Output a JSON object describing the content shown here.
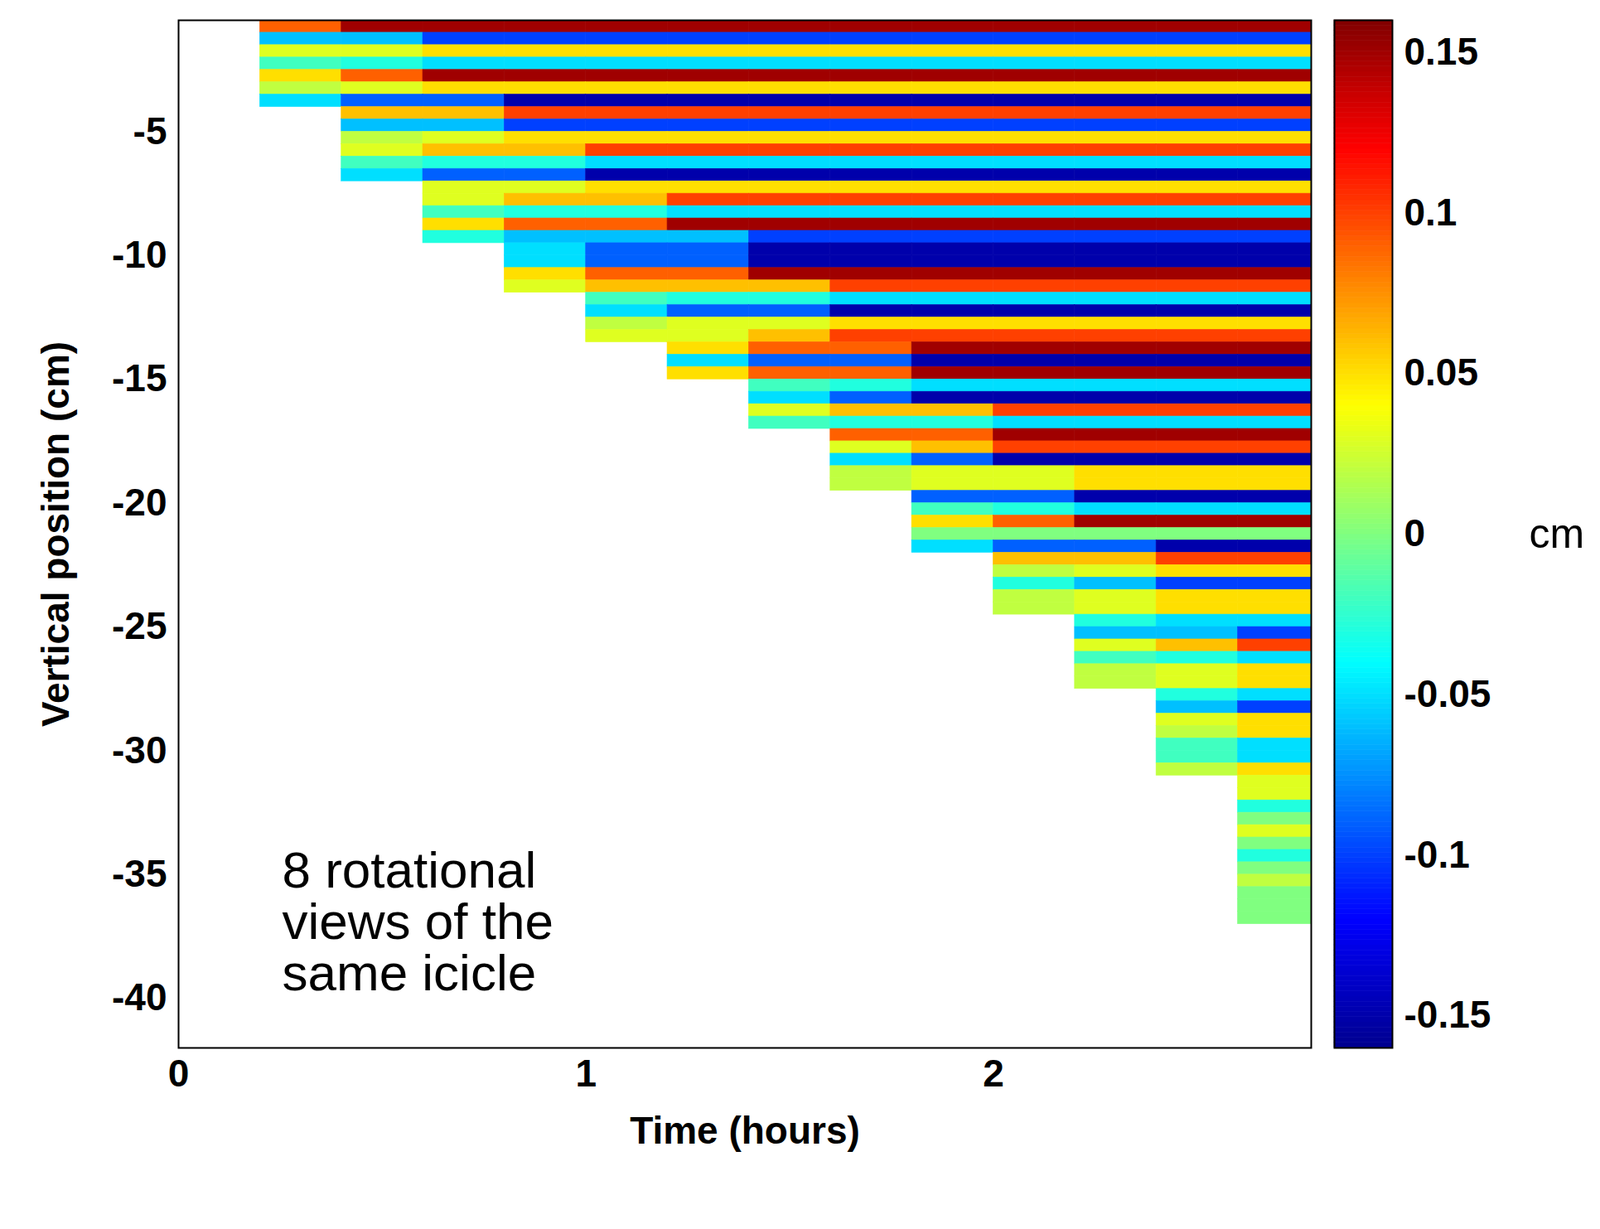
{
  "chart_data": {
    "type": "heatmap",
    "xlabel": "Time (hours)",
    "ylabel": "Vertical position (cm)",
    "annotation": "8 rotational views of the same icicle",
    "xlim": [
      0,
      2.78
    ],
    "ylim": [
      -42,
      -0.5
    ],
    "xticks": [
      0,
      1,
      2
    ],
    "yticks": [
      -40,
      -35,
      -30,
      -25,
      -20,
      -15,
      -10,
      -5
    ],
    "time_edges": [
      0.2,
      0.4,
      0.6,
      0.8,
      1,
      1.2,
      1.4,
      1.6,
      1.8,
      2,
      2.2,
      2.4,
      2.6,
      2.78
    ],
    "position_edges": [
      -0.5,
      -1,
      -1.5,
      -2,
      -2.5,
      -3,
      -3.5,
      -4,
      -4.5,
      -5,
      -5.5,
      -6,
      -6.5,
      -7,
      -7.5,
      -8,
      -8.5,
      -9,
      -9.5,
      -10,
      -10.5,
      -11,
      -11.5,
      -12,
      -12.5,
      -13,
      -13.5,
      -14,
      -14.5,
      -15,
      -15.5,
      -16,
      -16.5,
      -17,
      -17.5,
      -18,
      -18.5,
      -19,
      -19.5,
      -20,
      -20.5,
      -21,
      -21.5,
      -22,
      -22.5,
      -23,
      -23.5,
      -24,
      -24.5,
      -25,
      -25.5,
      -26,
      -26.5,
      -27,
      -27.5,
      -28,
      -28.5,
      -29,
      -29.5,
      -30,
      -30.5,
      -31,
      -31.5,
      -32,
      -32.5,
      -33,
      -33.5,
      -34,
      -34.5,
      -35,
      -35.5,
      -36,
      -36.5,
      -37
    ],
    "cells": [
      [
        0.09,
        0.15,
        0.15,
        0.15,
        0.15,
        0.15,
        0.15,
        0.15,
        0.15,
        0.15,
        0.15,
        0.15,
        0.15
      ],
      [
        -0.06,
        -0.06,
        -0.1,
        -0.1,
        -0.1,
        -0.1,
        -0.1,
        -0.1,
        -0.1,
        -0.1,
        -0.1,
        -0.1,
        -0.1
      ],
      [
        0.03,
        0.03,
        0.05,
        0.05,
        0.05,
        0.05,
        0.05,
        0.05,
        0.05,
        0.05,
        0.05,
        0.05,
        0.05
      ],
      [
        -0.02,
        -0.03,
        -0.05,
        -0.05,
        -0.05,
        -0.05,
        -0.05,
        -0.05,
        -0.05,
        -0.05,
        -0.05,
        -0.05,
        -0.05
      ],
      [
        0.05,
        0.09,
        0.15,
        0.15,
        0.15,
        0.15,
        0.15,
        0.15,
        0.15,
        0.15,
        0.15,
        0.15,
        0.15
      ],
      [
        0.02,
        0.03,
        0.05,
        0.05,
        0.05,
        0.05,
        0.05,
        0.05,
        0.05,
        0.05,
        0.05,
        0.05,
        0.05
      ],
      [
        -0.05,
        -0.09,
        -0.09,
        -0.15,
        -0.15,
        -0.15,
        -0.15,
        -0.15,
        -0.15,
        -0.15,
        -0.15,
        -0.15,
        -0.15
      ],
      [
        null,
        0.06,
        0.06,
        0.1,
        0.1,
        0.1,
        0.1,
        0.1,
        0.1,
        0.1,
        0.1,
        0.1,
        0.1
      ],
      [
        null,
        -0.06,
        -0.06,
        -0.1,
        -0.1,
        -0.1,
        -0.1,
        -0.1,
        -0.1,
        -0.1,
        -0.1,
        -0.1,
        -0.1
      ],
      [
        null,
        0.02,
        0.03,
        0.05,
        0.05,
        0.05,
        0.05,
        0.05,
        0.05,
        0.05,
        0.05,
        0.05,
        0.05
      ],
      [
        null,
        0.03,
        0.06,
        0.06,
        0.1,
        0.1,
        0.1,
        0.1,
        0.1,
        0.1,
        0.1,
        0.1,
        0.1
      ],
      [
        null,
        -0.02,
        -0.03,
        -0.03,
        -0.05,
        -0.05,
        -0.05,
        -0.05,
        -0.05,
        -0.05,
        -0.05,
        -0.05,
        -0.05
      ],
      [
        null,
        -0.05,
        -0.09,
        -0.09,
        -0.15,
        -0.15,
        -0.15,
        -0.15,
        -0.15,
        -0.15,
        -0.15,
        -0.15,
        -0.15
      ],
      [
        null,
        null,
        0.03,
        0.03,
        0.05,
        0.05,
        0.05,
        0.05,
        0.05,
        0.05,
        0.05,
        0.05,
        0.05
      ],
      [
        null,
        null,
        0.03,
        0.06,
        0.06,
        0.1,
        0.1,
        0.1,
        0.1,
        0.1,
        0.1,
        0.1,
        0.1
      ],
      [
        null,
        null,
        -0.02,
        -0.03,
        -0.03,
        -0.05,
        -0.05,
        -0.05,
        -0.05,
        -0.05,
        -0.05,
        -0.05,
        -0.05
      ],
      [
        null,
        null,
        0.05,
        0.09,
        0.09,
        0.15,
        0.15,
        0.15,
        0.15,
        0.15,
        0.15,
        0.15,
        0.15
      ],
      [
        null,
        null,
        -0.03,
        -0.06,
        -0.06,
        -0.06,
        -0.1,
        -0.1,
        -0.1,
        -0.1,
        -0.1,
        -0.1,
        -0.1
      ],
      [
        null,
        null,
        null,
        -0.05,
        -0.09,
        -0.09,
        -0.15,
        -0.15,
        -0.15,
        -0.15,
        -0.15,
        -0.15,
        -0.15
      ],
      [
        null,
        null,
        null,
        -0.05,
        -0.09,
        -0.09,
        -0.15,
        -0.15,
        -0.15,
        -0.15,
        -0.15,
        -0.15,
        -0.15
      ],
      [
        null,
        null,
        null,
        0.05,
        0.09,
        0.09,
        0.15,
        0.15,
        0.15,
        0.15,
        0.15,
        0.15,
        0.15
      ],
      [
        null,
        null,
        null,
        0.03,
        0.06,
        0.06,
        0.06,
        0.1,
        0.1,
        0.1,
        0.1,
        0.1,
        0.1
      ],
      [
        null,
        null,
        null,
        null,
        -0.02,
        -0.03,
        -0.03,
        -0.05,
        -0.05,
        -0.05,
        -0.05,
        -0.05,
        -0.05
      ],
      [
        null,
        null,
        null,
        null,
        -0.05,
        -0.09,
        -0.09,
        -0.15,
        -0.15,
        -0.15,
        -0.15,
        -0.15,
        -0.15
      ],
      [
        null,
        null,
        null,
        null,
        0.02,
        0.03,
        0.03,
        0.05,
        0.05,
        0.05,
        0.05,
        0.05,
        0.05
      ],
      [
        null,
        null,
        null,
        null,
        0.03,
        0.03,
        0.06,
        0.1,
        0.1,
        0.1,
        0.1,
        0.1,
        0.1
      ],
      [
        null,
        null,
        null,
        null,
        null,
        0.05,
        0.09,
        0.09,
        0.15,
        0.15,
        0.15,
        0.15,
        0.15
      ],
      [
        null,
        null,
        null,
        null,
        null,
        -0.05,
        -0.09,
        -0.09,
        -0.15,
        -0.15,
        -0.15,
        -0.15,
        -0.15
      ],
      [
        null,
        null,
        null,
        null,
        null,
        0.05,
        0.09,
        0.09,
        0.15,
        0.15,
        0.15,
        0.15,
        0.15
      ],
      [
        null,
        null,
        null,
        null,
        null,
        null,
        -0.02,
        -0.03,
        -0.05,
        -0.05,
        -0.05,
        -0.05,
        -0.05
      ],
      [
        null,
        null,
        null,
        null,
        null,
        null,
        -0.05,
        -0.09,
        -0.15,
        -0.15,
        -0.15,
        -0.15,
        -0.15
      ],
      [
        null,
        null,
        null,
        null,
        null,
        null,
        0.03,
        0.06,
        0.06,
        0.1,
        0.1,
        0.1,
        0.1
      ],
      [
        null,
        null,
        null,
        null,
        null,
        null,
        -0.02,
        -0.03,
        -0.03,
        -0.05,
        -0.05,
        -0.05,
        -0.05
      ],
      [
        null,
        null,
        null,
        null,
        null,
        null,
        null,
        0.09,
        0.09,
        0.15,
        0.15,
        0.15,
        0.15
      ],
      [
        null,
        null,
        null,
        null,
        null,
        null,
        null,
        0.03,
        0.06,
        0.1,
        0.1,
        0.1,
        0.1
      ],
      [
        null,
        null,
        null,
        null,
        null,
        null,
        null,
        -0.05,
        -0.09,
        -0.15,
        -0.15,
        -0.15,
        -0.15
      ],
      [
        null,
        null,
        null,
        null,
        null,
        null,
        null,
        0.02,
        0.03,
        0.03,
        0.05,
        0.05,
        0.05
      ],
      [
        null,
        null,
        null,
        null,
        null,
        null,
        null,
        0.02,
        0.03,
        0.03,
        0.05,
        0.05,
        0.05
      ],
      [
        null,
        null,
        null,
        null,
        null,
        null,
        null,
        null,
        -0.09,
        -0.09,
        -0.15,
        -0.15,
        -0.15
      ],
      [
        null,
        null,
        null,
        null,
        null,
        null,
        null,
        null,
        -0.02,
        -0.03,
        -0.05,
        -0.05,
        -0.05
      ],
      [
        null,
        null,
        null,
        null,
        null,
        null,
        null,
        null,
        0.05,
        0.09,
        0.15,
        0.15,
        0.15
      ],
      [
        null,
        null,
        null,
        null,
        null,
        null,
        null,
        null,
        0,
        0,
        0,
        0,
        0
      ],
      [
        null,
        null,
        null,
        null,
        null,
        null,
        null,
        null,
        -0.05,
        -0.09,
        -0.09,
        -0.15,
        -0.15
      ],
      [
        null,
        null,
        null,
        null,
        null,
        null,
        null,
        null,
        null,
        0.06,
        0.06,
        0.1,
        0.1
      ],
      [
        null,
        null,
        null,
        null,
        null,
        null,
        null,
        null,
        null,
        0.02,
        0.03,
        0.05,
        0.05
      ],
      [
        null,
        null,
        null,
        null,
        null,
        null,
        null,
        null,
        null,
        -0.03,
        -0.06,
        -0.1,
        -0.1
      ],
      [
        null,
        null,
        null,
        null,
        null,
        null,
        null,
        null,
        null,
        0.02,
        0.03,
        0.05,
        0.05
      ],
      [
        null,
        null,
        null,
        null,
        null,
        null,
        null,
        null,
        null,
        0.02,
        0.03,
        0.05,
        0.05
      ],
      [
        null,
        null,
        null,
        null,
        null,
        null,
        null,
        null,
        null,
        null,
        -0.03,
        -0.05,
        -0.05
      ],
      [
        null,
        null,
        null,
        null,
        null,
        null,
        null,
        null,
        null,
        null,
        -0.06,
        -0.06,
        -0.1
      ],
      [
        null,
        null,
        null,
        null,
        null,
        null,
        null,
        null,
        null,
        null,
        0.03,
        0.06,
        0.1
      ],
      [
        null,
        null,
        null,
        null,
        null,
        null,
        null,
        null,
        null,
        null,
        -0.02,
        -0.03,
        -0.05
      ],
      [
        null,
        null,
        null,
        null,
        null,
        null,
        null,
        null,
        null,
        null,
        0.02,
        0.03,
        0.05
      ],
      [
        null,
        null,
        null,
        null,
        null,
        null,
        null,
        null,
        null,
        null,
        0.02,
        0.03,
        0.05
      ],
      [
        null,
        null,
        null,
        null,
        null,
        null,
        null,
        null,
        null,
        null,
        null,
        -0.03,
        -0.05
      ],
      [
        null,
        null,
        null,
        null,
        null,
        null,
        null,
        null,
        null,
        null,
        null,
        -0.06,
        -0.1
      ],
      [
        null,
        null,
        null,
        null,
        null,
        null,
        null,
        null,
        null,
        null,
        null,
        0.03,
        0.05
      ],
      [
        null,
        null,
        null,
        null,
        null,
        null,
        null,
        null,
        null,
        null,
        null,
        0.02,
        0.05
      ],
      [
        null,
        null,
        null,
        null,
        null,
        null,
        null,
        null,
        null,
        null,
        null,
        -0.02,
        -0.05
      ],
      [
        null,
        null,
        null,
        null,
        null,
        null,
        null,
        null,
        null,
        null,
        null,
        -0.02,
        -0.05
      ],
      [
        null,
        null,
        null,
        null,
        null,
        null,
        null,
        null,
        null,
        null,
        null,
        0.02,
        0.05
      ],
      [
        null,
        null,
        null,
        null,
        null,
        null,
        null,
        null,
        null,
        null,
        null,
        null,
        0.03
      ],
      [
        null,
        null,
        null,
        null,
        null,
        null,
        null,
        null,
        null,
        null,
        null,
        null,
        0.03
      ],
      [
        null,
        null,
        null,
        null,
        null,
        null,
        null,
        null,
        null,
        null,
        null,
        null,
        -0.03
      ],
      [
        null,
        null,
        null,
        null,
        null,
        null,
        null,
        null,
        null,
        null,
        null,
        null,
        0
      ],
      [
        null,
        null,
        null,
        null,
        null,
        null,
        null,
        null,
        null,
        null,
        null,
        null,
        0.03
      ],
      [
        null,
        null,
        null,
        null,
        null,
        null,
        null,
        null,
        null,
        null,
        null,
        null,
        0
      ],
      [
        null,
        null,
        null,
        null,
        null,
        null,
        null,
        null,
        null,
        null,
        null,
        null,
        -0.03
      ],
      [
        null,
        null,
        null,
        null,
        null,
        null,
        null,
        null,
        null,
        null,
        null,
        null,
        0
      ],
      [
        null,
        null,
        null,
        null,
        null,
        null,
        null,
        null,
        null,
        null,
        null,
        null,
        0.02
      ],
      [
        null,
        null,
        null,
        null,
        null,
        null,
        null,
        null,
        null,
        null,
        null,
        null,
        0
      ],
      [
        null,
        null,
        null,
        null,
        null,
        null,
        null,
        null,
        null,
        null,
        null,
        null,
        0
      ],
      [
        null,
        null,
        null,
        null,
        null,
        null,
        null,
        null,
        null,
        null,
        null,
        null,
        0
      ]
    ],
    "colorbar": {
      "label": "cm",
      "range": [
        -0.16,
        0.16
      ],
      "ticks": [
        -0.15,
        -0.1,
        -0.05,
        0,
        0.05,
        0.1,
        0.15
      ]
    }
  }
}
